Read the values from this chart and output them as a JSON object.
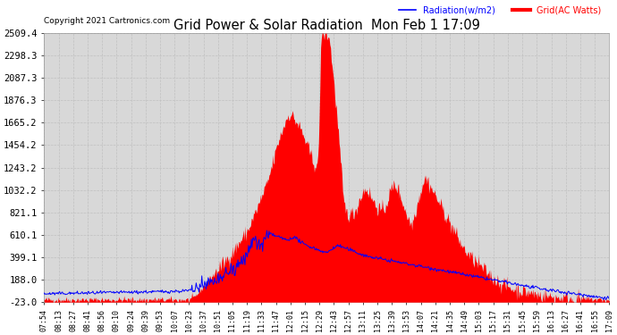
{
  "title": "Grid Power & Solar Radiation  Mon Feb 1 17:09",
  "copyright": "Copyright 2021 Cartronics.com",
  "legend_radiation": "Radiation(w/m2)",
  "legend_grid": "Grid(AC Watts)",
  "y_ticks": [
    -23.0,
    188.0,
    399.1,
    610.1,
    821.1,
    1032.2,
    1243.2,
    1454.2,
    1665.2,
    1876.3,
    2087.3,
    2298.3,
    2509.4
  ],
  "x_labels": [
    "07:54",
    "08:13",
    "08:27",
    "08:41",
    "08:56",
    "09:10",
    "09:24",
    "09:39",
    "09:53",
    "10:07",
    "10:23",
    "10:37",
    "10:51",
    "11:05",
    "11:19",
    "11:33",
    "11:47",
    "12:01",
    "12:15",
    "12:29",
    "12:43",
    "12:57",
    "13:11",
    "13:25",
    "13:39",
    "13:53",
    "14:07",
    "14:21",
    "14:35",
    "14:49",
    "15:03",
    "15:17",
    "15:31",
    "15:45",
    "15:59",
    "16:13",
    "16:27",
    "16:41",
    "16:55",
    "17:09"
  ],
  "background_color": "#ffffff",
  "grid_color": "#c0c0c0",
  "plot_bg_color": "#d8d8d8",
  "title_color": "#000000",
  "radiation_color": "#0000ff",
  "grid_power_color": "#ff0000",
  "fill_color": "#ff0000",
  "gp_keypoints_x": [
    0.0,
    0.255,
    0.265,
    0.275,
    0.29,
    0.31,
    0.33,
    0.36,
    0.38,
    0.395,
    0.405,
    0.415,
    0.425,
    0.43,
    0.435,
    0.44,
    0.445,
    0.45,
    0.455,
    0.46,
    0.465,
    0.47,
    0.475,
    0.48,
    0.485,
    0.49,
    0.495,
    0.5,
    0.505,
    0.515,
    0.52,
    0.53,
    0.535,
    0.54,
    0.545,
    0.55,
    0.555,
    0.56,
    0.565,
    0.57,
    0.575,
    0.58,
    0.585,
    0.59,
    0.595,
    0.6,
    0.605,
    0.61,
    0.615,
    0.62,
    0.625,
    0.63,
    0.635,
    0.64,
    0.645,
    0.65,
    0.655,
    0.66,
    0.665,
    0.67,
    0.675,
    0.68,
    0.685,
    0.69,
    0.695,
    0.7,
    0.705,
    0.71,
    0.715,
    0.72,
    0.725,
    0.73,
    0.735,
    0.74,
    0.745,
    0.755,
    0.765,
    0.775,
    0.785,
    0.795,
    0.81,
    0.83,
    0.855,
    0.88,
    0.91,
    0.94,
    0.97,
    0.99,
    1.0
  ],
  "gp_keypoints_y": [
    0,
    0,
    20,
    80,
    180,
    300,
    420,
    650,
    900,
    1100,
    1300,
    1500,
    1650,
    1720,
    1750,
    1720,
    1680,
    1640,
    1590,
    1520,
    1450,
    1380,
    1310,
    1260,
    1290,
    2509,
    2509,
    2509,
    2450,
    1900,
    1600,
    900,
    820,
    800,
    810,
    830,
    900,
    970,
    1020,
    1050,
    1000,
    950,
    900,
    870,
    840,
    830,
    900,
    980,
    1050,
    1080,
    1050,
    980,
    900,
    820,
    750,
    700,
    800,
    900,
    1000,
    1100,
    1150,
    1100,
    1050,
    1000,
    950,
    900,
    850,
    800,
    750,
    700,
    650,
    600,
    550,
    500,
    460,
    400,
    350,
    300,
    250,
    200,
    150,
    100,
    70,
    40,
    20,
    10,
    5,
    0,
    -10
  ],
  "rad_keypoints_x": [
    0.0,
    0.05,
    0.1,
    0.15,
    0.2,
    0.24,
    0.255,
    0.265,
    0.28,
    0.295,
    0.31,
    0.32,
    0.33,
    0.34,
    0.35,
    0.36,
    0.365,
    0.37,
    0.375,
    0.38,
    0.385,
    0.39,
    0.395,
    0.4,
    0.405,
    0.41,
    0.415,
    0.42,
    0.425,
    0.43,
    0.435,
    0.44,
    0.445,
    0.45,
    0.455,
    0.46,
    0.465,
    0.47,
    0.475,
    0.48,
    0.49,
    0.5,
    0.51,
    0.52,
    0.53,
    0.54,
    0.55,
    0.56,
    0.57,
    0.58,
    0.59,
    0.6,
    0.61,
    0.62,
    0.63,
    0.64,
    0.65,
    0.66,
    0.67,
    0.68,
    0.69,
    0.7,
    0.71,
    0.72,
    0.73,
    0.74,
    0.75,
    0.76,
    0.77,
    0.78,
    0.79,
    0.8,
    0.82,
    0.84,
    0.86,
    0.88,
    0.9,
    0.92,
    0.94,
    0.96,
    0.98,
    1.0
  ],
  "rad_keypoints_y": [
    55,
    60,
    65,
    70,
    75,
    80,
    85,
    100,
    130,
    160,
    190,
    220,
    260,
    300,
    350,
    420,
    510,
    580,
    530,
    480,
    520,
    560,
    600,
    620,
    610,
    600,
    590,
    580,
    570,
    560,
    570,
    590,
    580,
    560,
    540,
    520,
    510,
    500,
    490,
    480,
    460,
    440,
    480,
    510,
    490,
    470,
    450,
    430,
    410,
    400,
    390,
    380,
    370,
    360,
    350,
    340,
    330,
    320,
    310,
    300,
    290,
    280,
    270,
    260,
    250,
    240,
    230,
    220,
    210,
    200,
    190,
    180,
    160,
    140,
    120,
    100,
    85,
    70,
    55,
    40,
    25,
    15
  ]
}
